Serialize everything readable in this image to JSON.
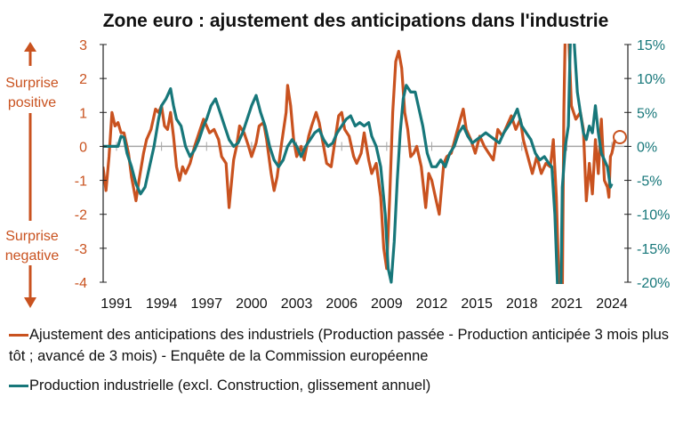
{
  "chart_data": {
    "type": "line",
    "title": "Zone euro : ajustement des anticipations dans l'industrie",
    "colors": {
      "orange": "#C9521F",
      "teal": "#17777A"
    },
    "x_ticks": [
      "1991",
      "1994",
      "1997",
      "2000",
      "2003",
      "2006",
      "2009",
      "2012",
      "2015",
      "2018",
      "2021",
      "2024"
    ],
    "y_left": {
      "ticks": [
        "3",
        "2",
        "1",
        "0",
        "-1",
        "-2",
        "-3",
        "-4"
      ],
      "ylim": [
        -4,
        3
      ]
    },
    "y_right": {
      "ticks": [
        "15%",
        "10%",
        "5%",
        "0%",
        "-5%",
        "-10%",
        "-15%",
        "-20%"
      ],
      "ylim": [
        -20,
        15
      ]
    },
    "annotations": {
      "positive": [
        "Surprise",
        "positive"
      ],
      "negative": [
        "Surprise",
        "negative"
      ]
    },
    "series": [
      {
        "name": "Ajustement des anticipations des industriels (Production passée - Production anticipée 3 mois plus tôt ; avancé de 3 mois) - Enquête de la Commission européenne",
        "axis": "left",
        "color": "#C9521F",
        "points": [
          [
            1990.1,
            -0.6
          ],
          [
            1990.3,
            -1.3
          ],
          [
            1990.5,
            -0.3
          ],
          [
            1990.7,
            1.0
          ],
          [
            1990.9,
            0.6
          ],
          [
            1991.1,
            0.7
          ],
          [
            1991.3,
            0.4
          ],
          [
            1991.5,
            0.4
          ],
          [
            1991.8,
            -0.2
          ],
          [
            1992.0,
            -0.9
          ],
          [
            1992.3,
            -1.6
          ],
          [
            1992.5,
            -1.0
          ],
          [
            1992.8,
            -0.2
          ],
          [
            1993.0,
            0.2
          ],
          [
            1993.3,
            0.5
          ],
          [
            1993.6,
            1.1
          ],
          [
            1993.8,
            1.0
          ],
          [
            1994.0,
            1.2
          ],
          [
            1994.2,
            0.6
          ],
          [
            1994.4,
            0.5
          ],
          [
            1994.6,
            1.0
          ],
          [
            1994.8,
            0.3
          ],
          [
            1995.0,
            -0.6
          ],
          [
            1995.2,
            -1.0
          ],
          [
            1995.4,
            -0.6
          ],
          [
            1995.6,
            -0.8
          ],
          [
            1995.9,
            -0.5
          ],
          [
            1996.2,
            0.0
          ],
          [
            1996.5,
            0.4
          ],
          [
            1996.8,
            0.8
          ],
          [
            1997.0,
            0.6
          ],
          [
            1997.2,
            0.4
          ],
          [
            1997.5,
            0.5
          ],
          [
            1997.8,
            0.2
          ],
          [
            1998.0,
            -0.3
          ],
          [
            1998.3,
            -0.5
          ],
          [
            1998.5,
            -1.8
          ],
          [
            1998.8,
            -0.4
          ],
          [
            1999.0,
            0.0
          ],
          [
            1999.2,
            0.6
          ],
          [
            1999.5,
            0.4
          ],
          [
            1999.8,
            0.0
          ],
          [
            2000.0,
            -0.3
          ],
          [
            2000.3,
            0.1
          ],
          [
            2000.5,
            0.6
          ],
          [
            2000.8,
            0.7
          ],
          [
            2001.0,
            0.2
          ],
          [
            2001.3,
            -0.8
          ],
          [
            2001.5,
            -1.3
          ],
          [
            2001.7,
            -0.9
          ],
          [
            2002.0,
            0.1
          ],
          [
            2002.3,
            1.0
          ],
          [
            2002.4,
            1.8
          ],
          [
            2002.6,
            1.2
          ],
          [
            2002.8,
            0.2
          ],
          [
            2003.0,
            -0.3
          ],
          [
            2003.3,
            0.0
          ],
          [
            2003.5,
            -0.4
          ],
          [
            2003.8,
            0.3
          ],
          [
            2004.0,
            0.6
          ],
          [
            2004.3,
            1.0
          ],
          [
            2004.5,
            0.7
          ],
          [
            2004.8,
            0.0
          ],
          [
            2005.0,
            -0.5
          ],
          [
            2005.3,
            -0.6
          ],
          [
            2005.6,
            0.3
          ],
          [
            2005.8,
            0.9
          ],
          [
            2006.0,
            1.0
          ],
          [
            2006.2,
            0.5
          ],
          [
            2006.5,
            0.3
          ],
          [
            2006.8,
            -0.3
          ],
          [
            2007.0,
            -0.5
          ],
          [
            2007.3,
            -0.2
          ],
          [
            2007.5,
            0.4
          ],
          [
            2007.8,
            -0.4
          ],
          [
            2008.0,
            -0.8
          ],
          [
            2008.3,
            -0.5
          ],
          [
            2008.6,
            -1.5
          ],
          [
            2008.8,
            -3.0
          ],
          [
            2009.0,
            -3.6
          ],
          [
            2009.2,
            -1.5
          ],
          [
            2009.4,
            1.0
          ],
          [
            2009.6,
            2.5
          ],
          [
            2009.8,
            2.8
          ],
          [
            2010.0,
            2.3
          ],
          [
            2010.2,
            1.0
          ],
          [
            2010.4,
            0.5
          ],
          [
            2010.6,
            -0.3
          ],
          [
            2010.8,
            -0.2
          ],
          [
            2011.0,
            0.0
          ],
          [
            2011.3,
            -0.6
          ],
          [
            2011.6,
            -1.8
          ],
          [
            2011.8,
            -0.8
          ],
          [
            2012.0,
            -1.0
          ],
          [
            2012.3,
            -1.6
          ],
          [
            2012.5,
            -2.0
          ],
          [
            2012.8,
            -0.5
          ],
          [
            2013.0,
            -0.3
          ],
          [
            2013.3,
            -0.2
          ],
          [
            2013.6,
            0.3
          ],
          [
            2013.9,
            0.8
          ],
          [
            2014.1,
            1.1
          ],
          [
            2014.3,
            0.5
          ],
          [
            2014.6,
            0.2
          ],
          [
            2014.9,
            -0.2
          ],
          [
            2015.2,
            0.3
          ],
          [
            2015.5,
            0.0
          ],
          [
            2015.8,
            -0.2
          ],
          [
            2016.1,
            -0.4
          ],
          [
            2016.4,
            0.5
          ],
          [
            2016.7,
            0.3
          ],
          [
            2017.0,
            0.6
          ],
          [
            2017.3,
            0.9
          ],
          [
            2017.6,
            0.5
          ],
          [
            2017.9,
            0.8
          ],
          [
            2018.1,
            0.2
          ],
          [
            2018.4,
            -0.3
          ],
          [
            2018.7,
            -0.8
          ],
          [
            2019.0,
            -0.3
          ],
          [
            2019.3,
            -0.8
          ],
          [
            2019.6,
            -0.5
          ],
          [
            2019.9,
            -0.6
          ],
          [
            2020.1,
            0.2
          ],
          [
            2020.3,
            -1.5
          ],
          [
            2020.5,
            -4.5
          ],
          [
            2020.7,
            -4.5
          ],
          [
            2020.8,
            1.0
          ],
          [
            2020.9,
            3.5
          ],
          [
            2021.1,
            3.5
          ],
          [
            2021.3,
            1.2
          ],
          [
            2021.6,
            0.8
          ],
          [
            2021.9,
            1.0
          ],
          [
            2022.1,
            0.5
          ],
          [
            2022.3,
            -1.6
          ],
          [
            2022.5,
            -0.5
          ],
          [
            2022.7,
            -1.4
          ],
          [
            2022.9,
            0.2
          ],
          [
            2023.1,
            -0.8
          ],
          [
            2023.3,
            0.8
          ],
          [
            2023.5,
            -1.0
          ],
          [
            2023.7,
            -1.2
          ],
          [
            2023.8,
            -1.5
          ],
          [
            2023.9,
            -0.3
          ],
          [
            2024.0,
            -0.2
          ],
          [
            2024.2,
            0.2
          ]
        ]
      },
      {
        "name": "Production industrielle (excl. Construction, glissement annuel)",
        "axis": "right",
        "color": "#17777A",
        "points": [
          [
            1990.1,
            0
          ],
          [
            1991.1,
            0
          ],
          [
            1991.3,
            1.5
          ],
          [
            1991.5,
            1.3
          ],
          [
            1991.7,
            -1
          ],
          [
            1992.0,
            -3
          ],
          [
            1992.3,
            -5.5
          ],
          [
            1992.6,
            -7
          ],
          [
            1992.9,
            -6
          ],
          [
            1993.2,
            -3
          ],
          [
            1993.5,
            0
          ],
          [
            1993.8,
            4
          ],
          [
            1994.0,
            6
          ],
          [
            1994.3,
            7
          ],
          [
            1994.6,
            8.5
          ],
          [
            1994.8,
            6
          ],
          [
            1995.0,
            4
          ],
          [
            1995.3,
            3
          ],
          [
            1995.6,
            0
          ],
          [
            1995.9,
            -1.5
          ],
          [
            1996.2,
            -0.5
          ],
          [
            1996.5,
            1
          ],
          [
            1996.8,
            3
          ],
          [
            1997.0,
            4
          ],
          [
            1997.3,
            6
          ],
          [
            1997.6,
            7
          ],
          [
            1997.9,
            5
          ],
          [
            1998.2,
            3
          ],
          [
            1998.5,
            1
          ],
          [
            1998.8,
            0
          ],
          [
            1999.1,
            0.5
          ],
          [
            1999.4,
            2
          ],
          [
            1999.7,
            4
          ],
          [
            2000.0,
            6
          ],
          [
            2000.3,
            7.5
          ],
          [
            2000.6,
            5
          ],
          [
            2000.9,
            3
          ],
          [
            2001.2,
            0
          ],
          [
            2001.5,
            -2
          ],
          [
            2001.8,
            -3
          ],
          [
            2002.1,
            -2
          ],
          [
            2002.4,
            0
          ],
          [
            2002.7,
            1
          ],
          [
            2003.0,
            0
          ],
          [
            2003.3,
            -1.5
          ],
          [
            2003.6,
            0
          ],
          [
            2003.9,
            1
          ],
          [
            2004.2,
            2
          ],
          [
            2004.5,
            2.5
          ],
          [
            2004.8,
            1
          ],
          [
            2005.1,
            0
          ],
          [
            2005.4,
            0.5
          ],
          [
            2005.7,
            2
          ],
          [
            2006.0,
            3
          ],
          [
            2006.3,
            4
          ],
          [
            2006.6,
            4.5
          ],
          [
            2006.9,
            3
          ],
          [
            2007.2,
            3.5
          ],
          [
            2007.5,
            3
          ],
          [
            2007.8,
            3.5
          ],
          [
            2008.0,
            1.5
          ],
          [
            2008.3,
            0
          ],
          [
            2008.6,
            -3
          ],
          [
            2008.9,
            -10
          ],
          [
            2009.1,
            -18
          ],
          [
            2009.3,
            -20
          ],
          [
            2009.5,
            -14
          ],
          [
            2009.7,
            -5
          ],
          [
            2009.9,
            2
          ],
          [
            2010.1,
            7
          ],
          [
            2010.3,
            9
          ],
          [
            2010.6,
            8
          ],
          [
            2010.9,
            8
          ],
          [
            2011.1,
            6
          ],
          [
            2011.4,
            3
          ],
          [
            2011.7,
            -1
          ],
          [
            2012.0,
            -3
          ],
          [
            2012.3,
            -3
          ],
          [
            2012.6,
            -2
          ],
          [
            2012.9,
            -3
          ],
          [
            2013.2,
            -1
          ],
          [
            2013.5,
            0
          ],
          [
            2013.8,
            2
          ],
          [
            2014.1,
            3
          ],
          [
            2014.4,
            1.5
          ],
          [
            2014.7,
            0.5
          ],
          [
            2015.0,
            1
          ],
          [
            2015.3,
            1.5
          ],
          [
            2015.6,
            2
          ],
          [
            2015.9,
            1.5
          ],
          [
            2016.2,
            1
          ],
          [
            2016.5,
            0.5
          ],
          [
            2016.8,
            2
          ],
          [
            2017.1,
            3
          ],
          [
            2017.4,
            4
          ],
          [
            2017.7,
            5.5
          ],
          [
            2018.0,
            3
          ],
          [
            2018.3,
            2
          ],
          [
            2018.6,
            1
          ],
          [
            2018.9,
            -1
          ],
          [
            2019.2,
            -2
          ],
          [
            2019.5,
            -1.5
          ],
          [
            2019.8,
            -2.5
          ],
          [
            2020.0,
            -3
          ],
          [
            2020.2,
            -10
          ],
          [
            2020.4,
            -22
          ],
          [
            2020.6,
            -22
          ],
          [
            2020.7,
            -6
          ],
          [
            2020.9,
            0
          ],
          [
            2021.1,
            3
          ],
          [
            2021.3,
            22
          ],
          [
            2021.5,
            15
          ],
          [
            2021.7,
            8
          ],
          [
            2021.9,
            5
          ],
          [
            2022.1,
            2
          ],
          [
            2022.3,
            1
          ],
          [
            2022.5,
            3
          ],
          [
            2022.7,
            2
          ],
          [
            2022.9,
            6
          ],
          [
            2023.1,
            2
          ],
          [
            2023.3,
            -1
          ],
          [
            2023.5,
            -2
          ],
          [
            2023.7,
            -3
          ],
          [
            2023.9,
            -6
          ],
          [
            2024.0,
            -5.5
          ]
        ]
      }
    ]
  }
}
